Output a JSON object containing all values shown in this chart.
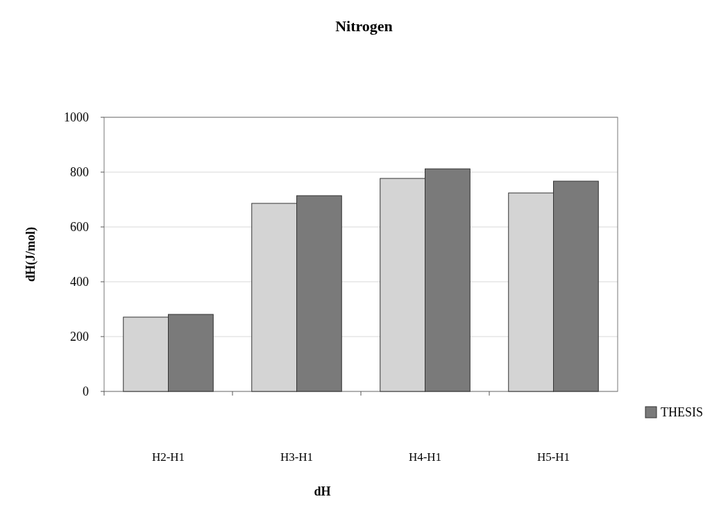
{
  "chart_data": {
    "type": "bar",
    "title": "Nitrogen",
    "xlabel": "dH",
    "ylabel": "dH(J/mol)",
    "categories": [
      "H2-H1",
      "H3-H1",
      "H4-H1",
      "H5-H1"
    ],
    "series": [
      {
        "color": "#d4d4d4",
        "values": [
          271,
          686,
          777,
          724
        ]
      },
      {
        "name": "THESIS",
        "color": "#7a7a7a",
        "values": [
          281,
          714,
          812,
          767
        ]
      }
    ],
    "ylim": [
      0,
      1000
    ],
    "yticks": [
      0,
      200,
      400,
      600,
      800,
      1000
    ],
    "grid": "y",
    "legend": "bottom right"
  }
}
